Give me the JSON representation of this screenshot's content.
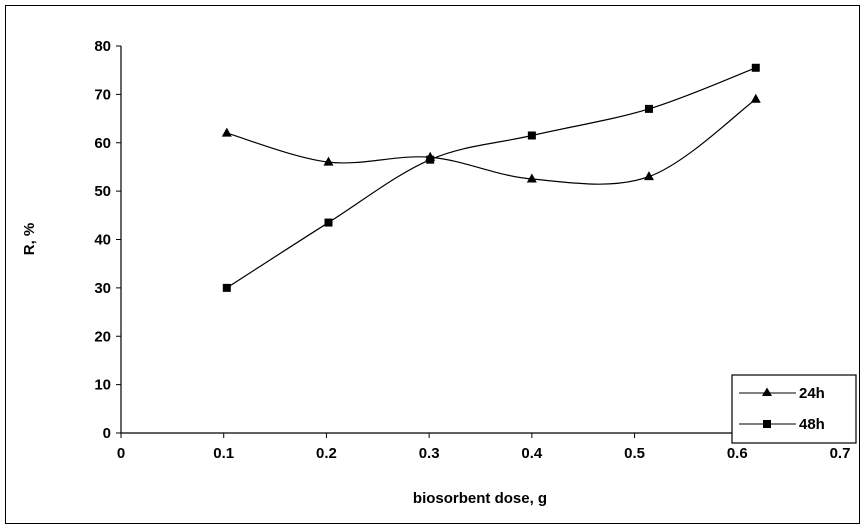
{
  "chart_data": {
    "type": "line",
    "title": "",
    "xlabel": "biosorbent dose, g",
    "ylabel": "R, %",
    "xlim": [
      0,
      0.7
    ],
    "ylim": [
      0,
      80
    ],
    "xticks": [
      "0",
      "0.1",
      "0.2",
      "0.3",
      "0.4",
      "0.5",
      "0.6",
      "0.7"
    ],
    "yticks": [
      "0",
      "10",
      "20",
      "30",
      "40",
      "50",
      "60",
      "70",
      "80"
    ],
    "grid": false,
    "smoothed": true,
    "legend_position": "right",
    "series": [
      {
        "name": "24h",
        "marker": "triangle",
        "color": "#000000",
        "x": [
          0.103,
          0.202,
          0.301,
          0.4,
          0.514,
          0.618
        ],
        "y": [
          62,
          56,
          57,
          52.5,
          53,
          69
        ]
      },
      {
        "name": "48h",
        "marker": "square",
        "color": "#000000",
        "x": [
          0.103,
          0.202,
          0.301,
          0.4,
          0.514,
          0.618
        ],
        "y": [
          30,
          43.5,
          56.5,
          61.5,
          67,
          75.5
        ]
      }
    ]
  }
}
